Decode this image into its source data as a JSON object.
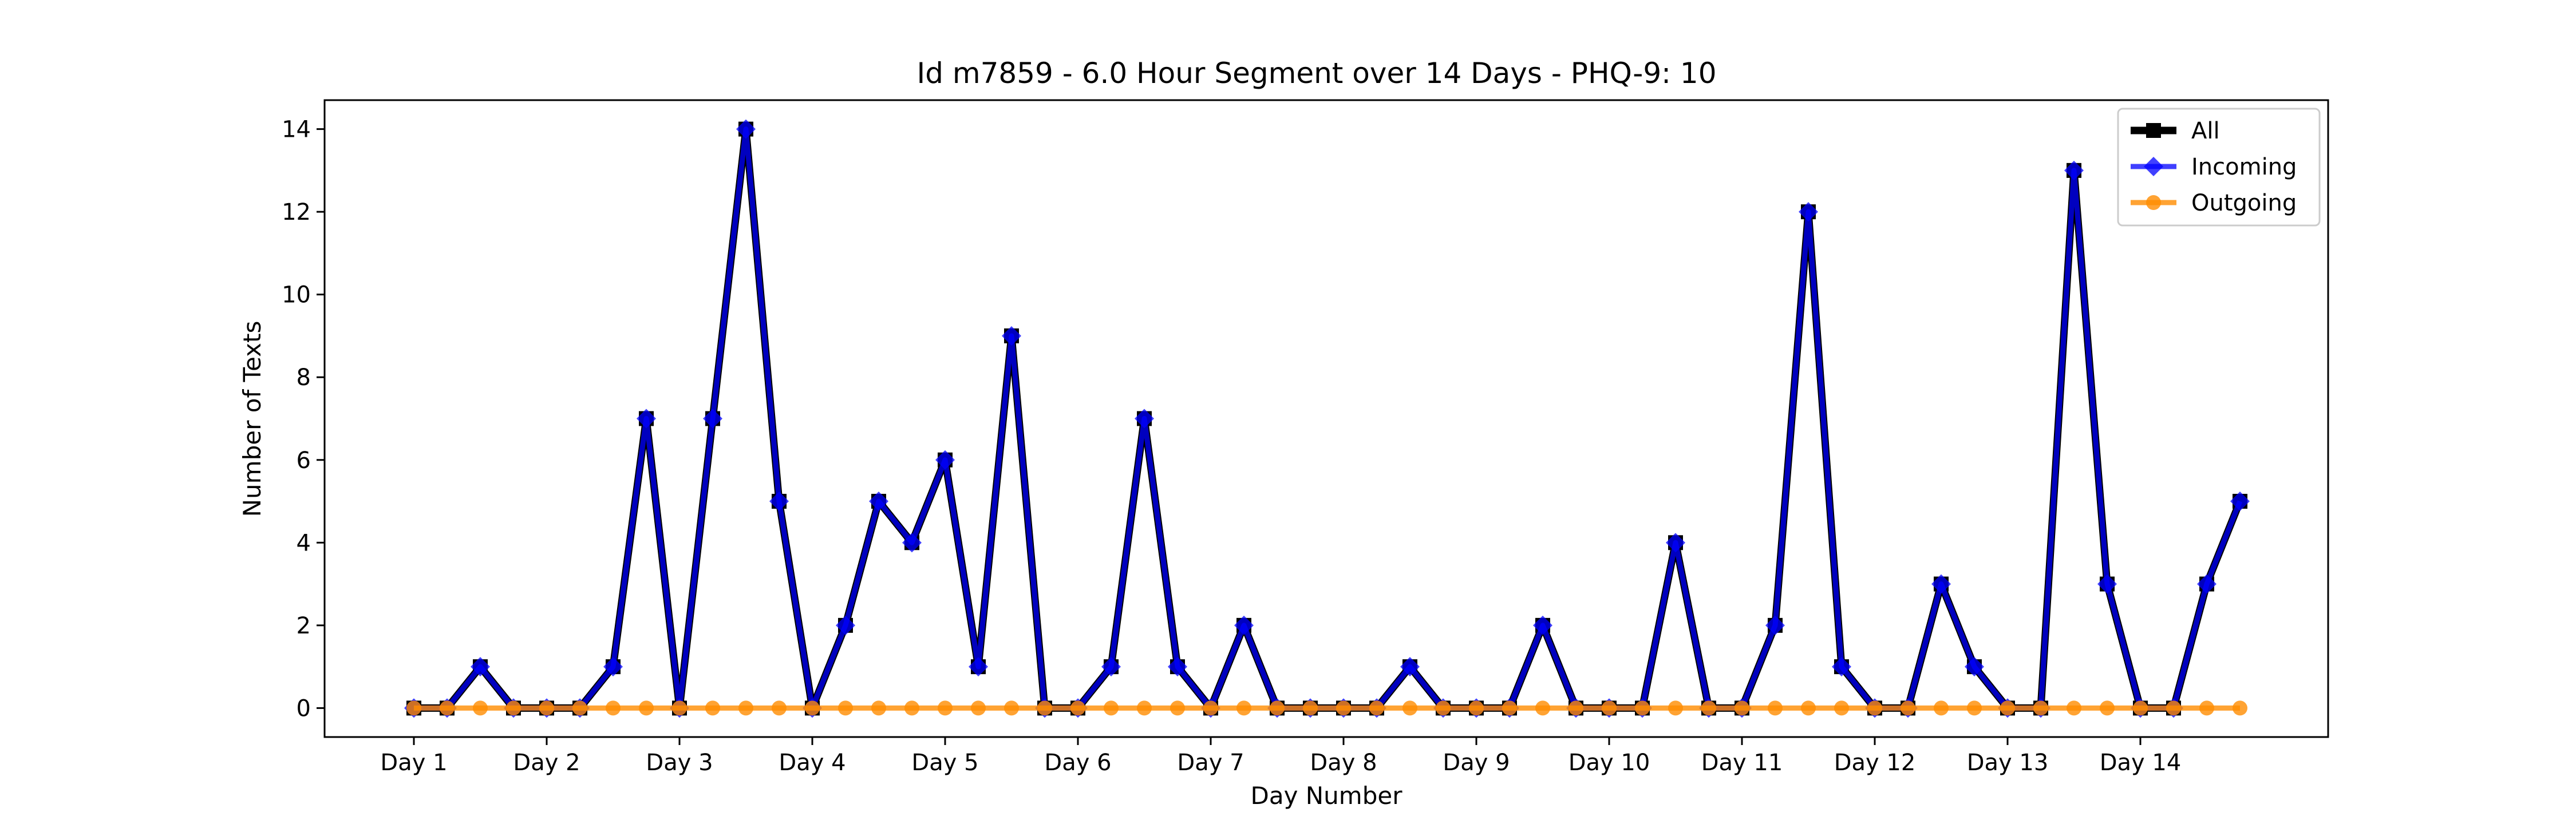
{
  "chart_data": {
    "type": "line",
    "title": "Id m7859 - 6.0 Hour Segment over 14 Days - PHQ-9: 10",
    "xlabel": "Day Number",
    "ylabel": "Number of Texts",
    "x_tick_labels": [
      "Day 1",
      "Day 2",
      "Day 3",
      "Day 4",
      "Day 5",
      "Day 6",
      "Day 7",
      "Day 8",
      "Day 9",
      "Day 10",
      "Day 11",
      "Day 12",
      "Day 13",
      "Day 14"
    ],
    "y_ticks": [
      0,
      2,
      4,
      6,
      8,
      10,
      12,
      14
    ],
    "ylim": [
      -0.7,
      14.7
    ],
    "grid": false,
    "legend_position": "top-right",
    "series": [
      {
        "name": "All",
        "color": "#000000",
        "marker": "square",
        "values": [
          0,
          0,
          1,
          0,
          0,
          0,
          1,
          7,
          0,
          7,
          14,
          5,
          0,
          2,
          5,
          4,
          6,
          1,
          9,
          0,
          0,
          1,
          7,
          1,
          0,
          2,
          0,
          0,
          0,
          0,
          1,
          0,
          0,
          0,
          2,
          0,
          0,
          0,
          4,
          0,
          0,
          2,
          12,
          1,
          0,
          0,
          3,
          1,
          0,
          0,
          13,
          3,
          0,
          0,
          3,
          5
        ]
      },
      {
        "name": "Incoming",
        "color": "#0000ff",
        "marker": "diamond",
        "values": [
          0,
          0,
          1,
          0,
          0,
          0,
          1,
          7,
          0,
          7,
          14,
          5,
          0,
          2,
          5,
          4,
          6,
          1,
          9,
          0,
          0,
          1,
          7,
          1,
          0,
          2,
          0,
          0,
          0,
          0,
          1,
          0,
          0,
          0,
          2,
          0,
          0,
          0,
          4,
          0,
          0,
          2,
          12,
          1,
          0,
          0,
          3,
          1,
          0,
          0,
          13,
          3,
          0,
          0,
          3,
          5
        ]
      },
      {
        "name": "Outgoing",
        "color": "#ff8c00",
        "marker": "circle",
        "values": [
          0,
          0,
          0,
          0,
          0,
          0,
          0,
          0,
          0,
          0,
          0,
          0,
          0,
          0,
          0,
          0,
          0,
          0,
          0,
          0,
          0,
          0,
          0,
          0,
          0,
          0,
          0,
          0,
          0,
          0,
          0,
          0,
          0,
          0,
          0,
          0,
          0,
          0,
          0,
          0,
          0,
          0,
          0,
          0,
          0,
          0,
          0,
          0,
          0,
          0,
          0,
          0,
          0,
          0,
          0,
          0
        ]
      }
    ]
  }
}
